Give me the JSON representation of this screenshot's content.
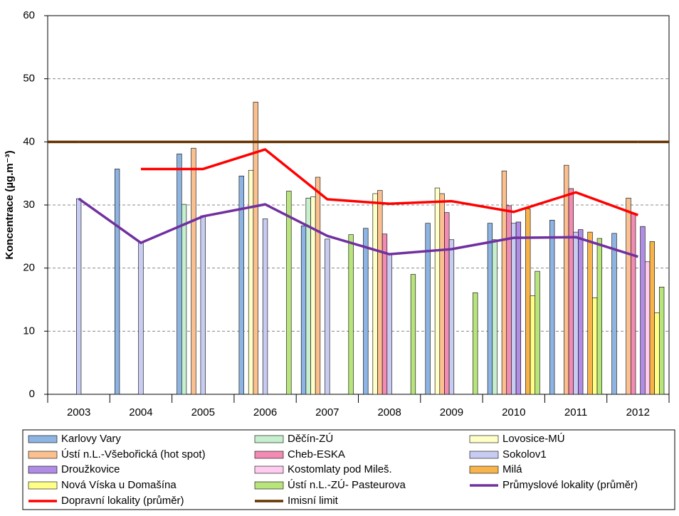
{
  "chart_data": {
    "type": "bar",
    "y_label": "Koncentrace (µg.m⁻³)",
    "categories": [
      "2003",
      "2004",
      "2005",
      "2006",
      "2007",
      "2008",
      "2009",
      "2010",
      "2011",
      "2012"
    ],
    "ylim": [
      0,
      60
    ],
    "yticks": [
      0,
      10,
      20,
      30,
      40,
      50,
      60
    ],
    "grid": true,
    "series": [
      {
        "name": "Karlovy Vary",
        "color": "#8DB4E2",
        "values": [
          null,
          35.7,
          38.1,
          34.6,
          26.7,
          26.3,
          27.1,
          27.1,
          27.6,
          25.5
        ]
      },
      {
        "name": "Děčín-ZÚ",
        "color": "#C6EFCE",
        "values": [
          null,
          null,
          30.1,
          null,
          31.1,
          null,
          null,
          24.5,
          null,
          null
        ]
      },
      {
        "name": "Lovosice-MÚ",
        "color": "#FFFFC8",
        "values": [
          null,
          null,
          null,
          35.5,
          31.3,
          31.8,
          32.7,
          null,
          null,
          null
        ]
      },
      {
        "name": "Ústí n.L.-Všebořická (hot spot)",
        "color": "#FAC090",
        "values": [
          null,
          null,
          39.0,
          46.3,
          34.4,
          32.3,
          31.8,
          35.4,
          36.3,
          31.1
        ]
      },
      {
        "name": "Cheb-ESKA",
        "color": "#F28CB4",
        "values": [
          null,
          null,
          null,
          null,
          null,
          25.4,
          28.8,
          29.9,
          32.6,
          28.6
        ]
      },
      {
        "name": "Sokolov1",
        "color": "#C8CCF2",
        "values": [
          31.0,
          24.0,
          28.3,
          27.8,
          24.6,
          22.2,
          24.5,
          27.1,
          25.7,
          null
        ]
      },
      {
        "name": "Droužkovice",
        "color": "#B08CE4",
        "values": [
          null,
          null,
          null,
          null,
          null,
          null,
          null,
          27.3,
          26.1,
          26.6
        ]
      },
      {
        "name": "Kostomlaty pod Mileš.",
        "color": "#FFCCF0",
        "values": [
          null,
          null,
          null,
          null,
          null,
          null,
          null,
          null,
          null,
          21.0
        ]
      },
      {
        "name": "Milá",
        "color": "#F8B44C",
        "values": [
          null,
          null,
          null,
          null,
          null,
          null,
          null,
          29.4,
          25.7,
          24.2
        ]
      },
      {
        "name": "Nová Víska u Domašína",
        "color": "#FFFF88",
        "values": [
          null,
          null,
          null,
          null,
          null,
          null,
          null,
          15.6,
          15.3,
          12.9
        ]
      },
      {
        "name": "Ústí n.L.-ZÚ- Pasteurova",
        "color": "#B8E47C",
        "values": [
          null,
          null,
          null,
          32.2,
          25.3,
          19.0,
          16.1,
          19.5,
          24.7,
          17.0
        ]
      },
      {
        "name": "Průmyslové lokality (průměr)",
        "type": "line",
        "color": "#7030A0",
        "values": [
          31.0,
          24.0,
          28.2,
          30.1,
          25.1,
          22.2,
          23.0,
          24.8,
          24.9,
          21.8
        ]
      },
      {
        "name": "Dopravní lokality (průměr)",
        "type": "line",
        "color": "#FF0000",
        "values": [
          null,
          35.7,
          35.7,
          38.8,
          30.9,
          30.2,
          30.6,
          28.9,
          32.0,
          28.4
        ]
      },
      {
        "name": "Imisní limit",
        "type": "line",
        "color": "#663300",
        "values": [
          40,
          40,
          40,
          40,
          40,
          40,
          40,
          40,
          40,
          40
        ]
      }
    ]
  }
}
